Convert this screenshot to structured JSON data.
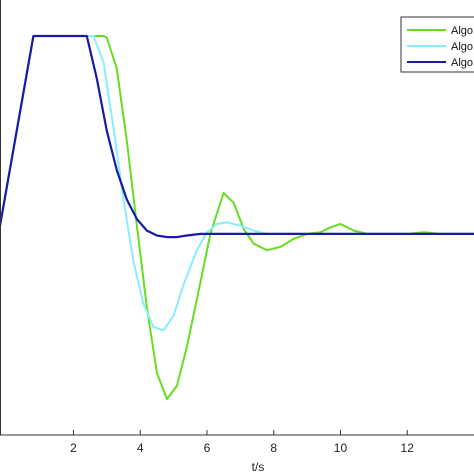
{
  "chart_data": {
    "type": "line",
    "xlabel": "t/s",
    "ylabel": "",
    "title": "",
    "xlim": [
      -0.2,
      14
    ],
    "ylim": [
      -1.28,
      1.38
    ],
    "xticks": [
      2,
      4,
      6,
      8,
      10,
      12
    ],
    "grid": false,
    "legend": {
      "placement": "top-right",
      "entries": [
        "Algo",
        "Algo",
        "Algo"
      ]
    },
    "series": [
      {
        "name": "Algo",
        "color": "#66dd22",
        "x": [
          -0.2,
          0.8,
          2.9,
          3.0,
          3.3,
          3.6,
          3.9,
          4.2,
          4.5,
          4.8,
          5.1,
          5.4,
          5.8,
          6.1,
          6.5,
          6.8,
          7.1,
          7.4,
          7.8,
          8.2,
          8.6,
          9.0,
          9.4,
          9.7,
          10.0,
          10.4,
          10.8,
          11.2,
          11.6,
          12.0,
          12.5,
          13.0,
          14.0
        ],
        "y": [
          0.0,
          1.16,
          1.16,
          1.15,
          0.96,
          0.52,
          0.0,
          -0.5,
          -0.9,
          -1.06,
          -0.98,
          -0.74,
          -0.35,
          -0.05,
          0.2,
          0.14,
          -0.02,
          -0.11,
          -0.15,
          -0.13,
          -0.08,
          -0.05,
          -0.04,
          -0.01,
          0.01,
          -0.03,
          -0.05,
          -0.05,
          -0.05,
          -0.05,
          -0.04,
          -0.05,
          -0.05
        ]
      },
      {
        "name": "Algo",
        "color": "#88eeff",
        "x": [
          -0.2,
          0.8,
          2.6,
          2.9,
          3.2,
          3.5,
          3.8,
          4.1,
          4.4,
          4.7,
          5.0,
          5.3,
          5.7,
          6.0,
          6.3,
          6.6,
          7.0,
          7.4,
          7.8,
          8.2,
          8.6,
          9.0,
          14.0
        ],
        "y": [
          0.0,
          1.16,
          1.16,
          1.0,
          0.6,
          0.16,
          -0.22,
          -0.48,
          -0.62,
          -0.64,
          -0.55,
          -0.36,
          -0.15,
          -0.04,
          0.01,
          0.02,
          0.0,
          -0.03,
          -0.05,
          -0.05,
          -0.05,
          -0.05,
          -0.05
        ]
      },
      {
        "name": "Algo",
        "color": "#1a1aa8",
        "x": [
          -0.2,
          0.8,
          2.4,
          2.7,
          3.0,
          3.3,
          3.6,
          3.9,
          4.2,
          4.5,
          4.8,
          5.1,
          5.4,
          5.8,
          6.2,
          7.0,
          14.0
        ],
        "y": [
          0.0,
          1.16,
          1.16,
          0.9,
          0.58,
          0.34,
          0.16,
          0.04,
          -0.03,
          -0.06,
          -0.07,
          -0.07,
          -0.06,
          -0.05,
          -0.05,
          -0.05,
          -0.05
        ]
      }
    ]
  }
}
